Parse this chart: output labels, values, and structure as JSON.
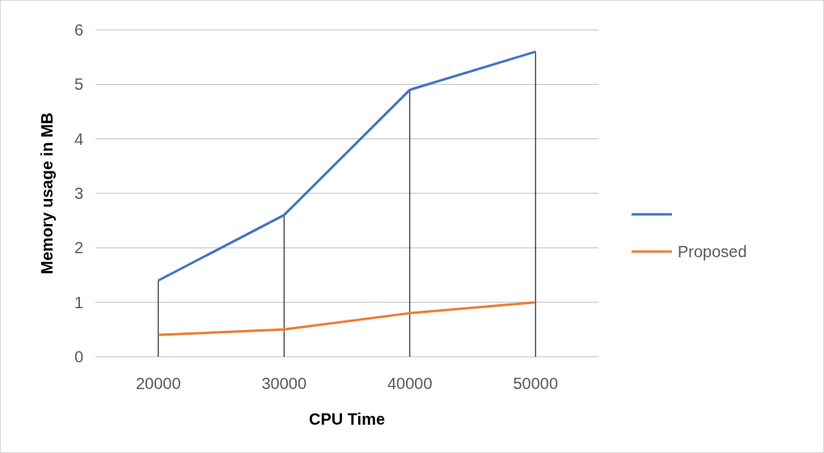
{
  "chart_data": {
    "type": "line",
    "xlabel": "CPU Time",
    "ylabel": "Memory usage in MB",
    "categories": [
      "20000",
      "30000",
      "40000",
      "50000"
    ],
    "series": [
      {
        "type": "bar",
        "color": "#000000",
        "values": [
          1.4,
          2.6,
          4.9,
          5.6
        ]
      },
      {
        "color": "#4472c4",
        "values": [
          1.4,
          2.6,
          4.9,
          5.6
        ]
      },
      {
        "name": "Proposed",
        "color": "#ed7d31",
        "values": [
          0.4,
          0.5,
          0.8,
          1.0
        ]
      }
    ],
    "ylim": [
      0,
      6
    ],
    "yticks": [
      0,
      1,
      2,
      3,
      4,
      5,
      6
    ],
    "grid": "y",
    "legend": "right"
  }
}
